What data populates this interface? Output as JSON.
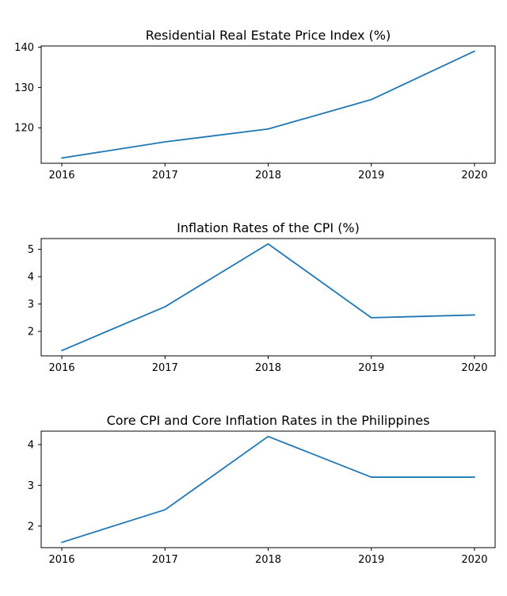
{
  "chart_data": [
    {
      "type": "line",
      "title": "Residential Real Estate Price Index (%)",
      "xlabel": "",
      "ylabel": "",
      "x": [
        "2016",
        "2017",
        "2018",
        "2019",
        "2020"
      ],
      "series": [
        {
          "values": [
            112.5,
            116.5,
            119.7,
            127.0,
            139.0
          ],
          "color": "#1f77b4"
        }
      ],
      "ylim": [
        111.2,
        140.3
      ],
      "yticks": [
        120,
        130,
        140
      ],
      "grid": false,
      "legend": "none"
    },
    {
      "type": "line",
      "title": "Inflation Rates of the CPI (%)",
      "xlabel": "",
      "ylabel": "",
      "x": [
        "2016",
        "2017",
        "2018",
        "2019",
        "2020"
      ],
      "series": [
        {
          "values": [
            1.3,
            2.9,
            5.2,
            2.5,
            2.6
          ],
          "color": "#1f77b4"
        }
      ],
      "ylim": [
        1.105,
        5.395
      ],
      "yticks": [
        2,
        3,
        4,
        5
      ],
      "grid": false,
      "legend": "none"
    },
    {
      "type": "line",
      "title": "Core CPI and Core Inflation Rates in the Philippines",
      "xlabel": "",
      "ylabel": "",
      "x": [
        "2016",
        "2017",
        "2018",
        "2019",
        "2020"
      ],
      "series": [
        {
          "values": [
            1.6,
            2.4,
            4.2,
            3.2,
            3.2
          ],
          "color": "#1f77b4"
        }
      ],
      "ylim": [
        1.47,
        4.33
      ],
      "yticks": [
        2,
        3,
        4
      ],
      "grid": false,
      "legend": "none"
    }
  ]
}
